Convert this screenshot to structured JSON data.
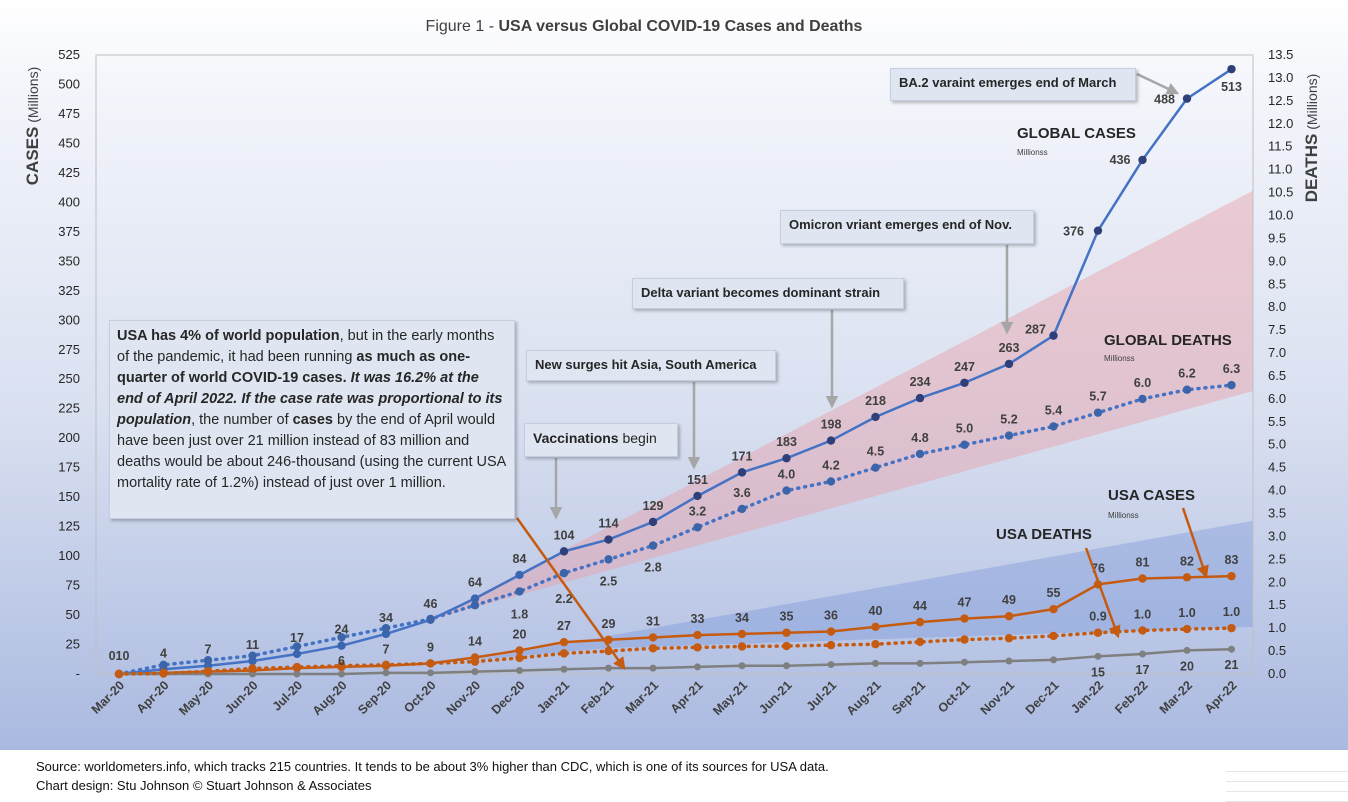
{
  "chart_data": {
    "type": "line",
    "title_prefix": "Figure 1 - ",
    "title": "USA versus Global COVID-19 Cases and Deaths",
    "categories": [
      "Mar-20",
      "Apr-20",
      "May-20",
      "Jun-20",
      "Jul-20",
      "Aug-20",
      "Sep-20",
      "Oct-20",
      "Nov-20",
      "Dec-20",
      "Jan-21",
      "Feb-21",
      "Mar-21",
      "Apr-21",
      "May-21",
      "Jun-21",
      "Jul-21",
      "Aug-21",
      "Sep-21",
      "Oct-21",
      "Nov-21",
      "Dec-21",
      "Jan-22",
      "Feb-22",
      "Mar-22",
      "Apr-22"
    ],
    "y_left": {
      "label": "CASES",
      "unit": " (Millions)",
      "min": 0,
      "max": 525,
      "ticks": [
        "-",
        "25",
        "50",
        "75",
        "100",
        "125",
        "150",
        "175",
        "200",
        "225",
        "250",
        "275",
        "300",
        "325",
        "350",
        "375",
        "400",
        "425",
        "450",
        "475",
        "500",
        "525"
      ]
    },
    "y_right": {
      "label": "DEATHS",
      "unit": " (Millions)",
      "min": 0,
      "max": 13.5,
      "ticks": [
        "0.0",
        "0.5",
        "1.0",
        "1.5",
        "2.0",
        "2.5",
        "3.0",
        "3.5",
        "4.0",
        "4.5",
        "5.0",
        "5.5",
        "6.0",
        "6.5",
        "7.0",
        "7.5",
        "8.0",
        "8.5",
        "9.0",
        "9.5",
        "10.0",
        "10.5",
        "11.0",
        "11.5",
        "12.0",
        "12.5",
        "13.0",
        "13.5"
      ]
    },
    "grid": false,
    "series": [
      {
        "name": "GLOBAL CASES",
        "sub": "Millionss",
        "axis": "left",
        "color": "#4472c4",
        "style": "solid",
        "values": [
          0,
          4,
          7,
          11,
          17,
          24,
          34,
          46,
          64,
          84,
          104,
          114,
          129,
          151,
          171,
          183,
          198,
          218,
          234,
          247,
          263,
          287,
          376,
          436,
          488,
          513
        ],
        "labels": [
          "0",
          "4",
          "7",
          "11",
          "17",
          "24",
          "34",
          "46",
          "64",
          "84",
          "104",
          "114",
          "129",
          "151",
          "171",
          "183",
          "198",
          "218",
          "234",
          "247",
          "263",
          "287",
          "376",
          "436",
          "488",
          "513"
        ]
      },
      {
        "name": "GLOBAL DEATHS",
        "sub": "Millionss",
        "axis": "right",
        "color": "#4472c4",
        "style": "dotted",
        "values": [
          0.0,
          0.2,
          0.3,
          0.4,
          0.6,
          0.8,
          1.0,
          1.2,
          1.5,
          1.8,
          2.2,
          2.5,
          2.8,
          3.2,
          3.6,
          4.0,
          4.2,
          4.5,
          4.8,
          5.0,
          5.2,
          5.4,
          5.7,
          6.0,
          6.2,
          6.3
        ],
        "labels": [
          "",
          "",
          "",
          "",
          "",
          "",
          "",
          "",
          "",
          "1.8",
          "2.2",
          "2.5",
          "2.8",
          "3.2",
          "3.6",
          "4.0",
          "4.2",
          "4.5",
          "4.8",
          "5.0",
          "5.2",
          "5.4",
          "5.7",
          "6.0",
          "6.2",
          "6.3"
        ]
      },
      {
        "name": "USA CASES",
        "sub": "Millionss",
        "axis": "left",
        "color": "#c55a11",
        "style": "solid",
        "values": [
          0,
          1,
          2,
          3,
          5,
          6,
          7,
          9,
          14,
          20,
          27,
          29,
          31,
          33,
          34,
          35,
          36,
          40,
          44,
          47,
          49,
          55,
          76,
          81,
          82,
          83
        ],
        "labels": [
          "0",
          "",
          "",
          "",
          "",
          "6",
          "7",
          "9",
          "14",
          "20",
          "27",
          "29",
          "31",
          "33",
          "34",
          "35",
          "36",
          "40",
          "44",
          "47",
          "49",
          "55",
          "76",
          "81",
          "82",
          "83"
        ]
      },
      {
        "name": "USA DEATHS",
        "sub": "",
        "axis": "left",
        "color": "#7f7f7f",
        "style": "solid",
        "values": [
          0,
          0,
          0,
          0,
          0,
          0,
          1,
          1,
          2,
          3,
          4,
          5,
          5,
          6,
          7,
          7,
          8,
          9,
          9,
          10,
          11,
          12,
          15,
          17,
          20,
          21
        ],
        "labels": [
          "0",
          "",
          "",
          "",
          "",
          "",
          "",
          "",
          "",
          "",
          "",
          "",
          "",
          "",
          "",
          "",
          "",
          "",
          "",
          "",
          "",
          "",
          "15",
          "17",
          "20",
          "21"
        ]
      },
      {
        "name": "USA DEATHS (right axis)",
        "axis": "right",
        "color": "#c55a11",
        "style": "dotted",
        "values": [
          0.0,
          0.01,
          0.06,
          0.12,
          0.15,
          0.18,
          0.2,
          0.23,
          0.27,
          0.35,
          0.45,
          0.5,
          0.56,
          0.58,
          0.6,
          0.61,
          0.63,
          0.65,
          0.7,
          0.75,
          0.78,
          0.83,
          0.9,
          0.95,
          0.98,
          1.0
        ],
        "labels": [
          "",
          "",
          "",
          "",
          "",
          "",
          "",
          "",
          "",
          "",
          "",
          "",
          "",
          "",
          "",
          "",
          "",
          "",
          "",
          "",
          "",
          "",
          "0.9",
          "1.0",
          "1.0",
          "1.0"
        ]
      }
    ],
    "first_point_label": "010"
  },
  "annotations": {
    "ba2": "BA.2 varaint emerges end of March",
    "omicron": "Omicron vriant emerges end of Nov.",
    "delta": "Delta variant becomes dominant strain",
    "surges": "New surges hit Asia, South America",
    "vacc_bold": "Vaccinations",
    "vacc_rest": " begin"
  },
  "series_titles": {
    "global_cases": "GLOBAL CASES",
    "global_deaths": "GLOBAL DEATHS",
    "usa_cases": "USA CASES",
    "usa_deaths": "USA DEATHS",
    "sub": "Millionss"
  },
  "note": {
    "p1": "USA has 4% of world population",
    "p2": ", but in the early months of the pandemic, it had been running ",
    "p3": "as much as one-quarter of world COVID-19 cases.",
    "p4": " It was 16.2% at the end of April 2022. If the case rate was proportional to its population",
    "p5": ", the number of ",
    "p6": "cases",
    "p7": " by the end of April would have been  just over 21 million instead of 83 million and deaths would be about 246-thousand ",
    "p8": "(using the current USA mortality rate of 1.2%)",
    "p9": " instead of just over 1 million."
  },
  "footer": {
    "source": "Source: worldometers.info, which tracks 215 countries. It tends to be about 3% higher than CDC, which is one of its sources for USA data.",
    "design": "Chart design: Stu Johnson  © Stuart Johnson & Associates"
  }
}
